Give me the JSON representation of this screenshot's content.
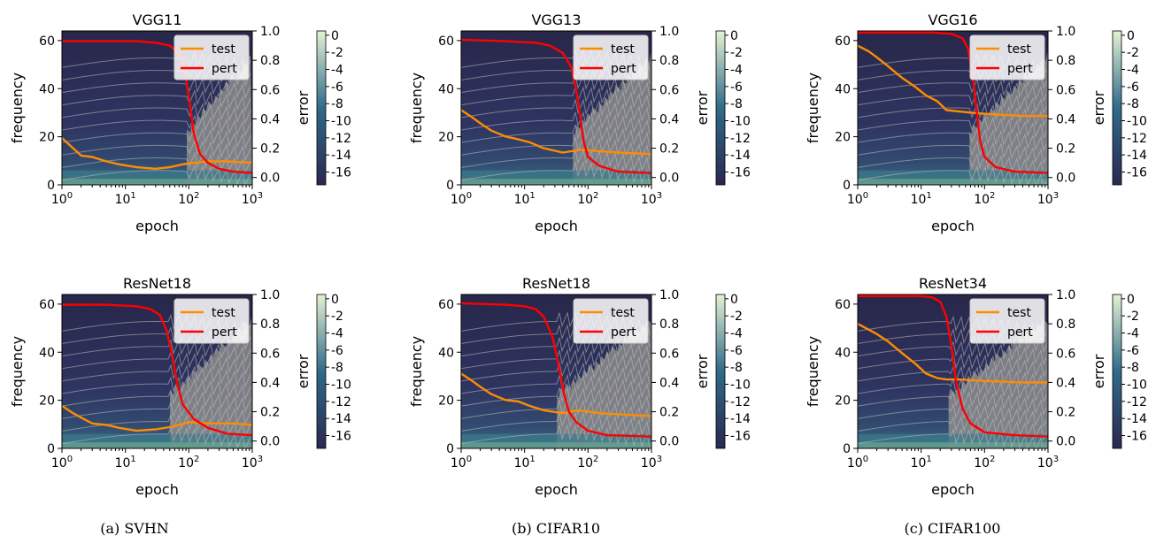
{
  "captions": [
    "(a) SVHN",
    "(b) CIFAR10",
    "(c) CIFAR100"
  ],
  "colorbar": {
    "label": "error",
    "ticks": [
      "0",
      "-2",
      "-4",
      "-6",
      "-8",
      "-10",
      "-12",
      "-14",
      "-16"
    ],
    "values": [
      0,
      -2,
      -4,
      -6,
      -8,
      -10,
      -12,
      -14,
      -16
    ],
    "range": [
      -17.5,
      0.5
    ]
  },
  "colors": {
    "test": "#ff8c00",
    "pert": "#ff0000",
    "contour_line": "#bfbfbf",
    "grey_fill": "#8c8c8c",
    "cmap_dark": "#2a2750",
    "cmap_mid": "#2f6b8a",
    "cmap_light": "#e5f2d2"
  },
  "chart_data": [
    {
      "type": "line",
      "title": "VGG11",
      "xlabel": "epoch",
      "ylabel": "frequency",
      "y2label": "error",
      "xscale": "log",
      "xlim": [
        1,
        1000
      ],
      "xticks": [
        "10^0",
        "10^1",
        "10^2",
        "10^3"
      ],
      "ylim": [
        0,
        64
      ],
      "yticks": [
        0,
        20,
        40,
        60
      ],
      "y2lim": [
        -0.05,
        1.0
      ],
      "y2ticks": [
        "0.0",
        "0.2",
        "0.4",
        "0.6",
        "0.8",
        "1.0"
      ],
      "legend": "top-right",
      "series": [
        {
          "name": "test",
          "x": [
            1,
            1.5,
            2,
            3,
            5,
            8,
            15,
            30,
            50,
            80,
            120,
            200,
            400,
            1000
          ],
          "y": [
            0.27,
            0.2,
            0.15,
            0.14,
            0.11,
            0.09,
            0.07,
            0.06,
            0.07,
            0.09,
            0.1,
            0.11,
            0.11,
            0.1
          ]
        },
        {
          "name": "pert",
          "x": [
            1,
            5,
            15,
            30,
            50,
            70,
            85,
            100,
            120,
            150,
            200,
            300,
            500,
            1000
          ],
          "y": [
            0.93,
            0.93,
            0.93,
            0.92,
            0.9,
            0.85,
            0.75,
            0.55,
            0.3,
            0.16,
            0.1,
            0.06,
            0.04,
            0.03
          ]
        }
      ]
    },
    {
      "type": "line",
      "title": "VGG13",
      "xlabel": "epoch",
      "ylabel": "frequency",
      "y2label": "error",
      "xscale": "log",
      "xlim": [
        1,
        1000
      ],
      "xticks": [
        "10^0",
        "10^1",
        "10^2",
        "10^3"
      ],
      "ylim": [
        0,
        64
      ],
      "yticks": [
        0,
        20,
        40,
        60
      ],
      "y2lim": [
        -0.05,
        1.0
      ],
      "y2ticks": [
        "0.0",
        "0.2",
        "0.4",
        "0.6",
        "0.8",
        "1.0"
      ],
      "legend": "top-right",
      "series": [
        {
          "name": "test",
          "x": [
            1,
            1.5,
            2,
            3,
            5,
            8,
            12,
            20,
            40,
            80,
            150,
            300,
            1000
          ],
          "y": [
            0.46,
            0.41,
            0.37,
            0.32,
            0.28,
            0.26,
            0.24,
            0.2,
            0.17,
            0.19,
            0.18,
            0.17,
            0.16
          ]
        },
        {
          "name": "pert",
          "x": [
            1,
            5,
            15,
            25,
            40,
            55,
            65,
            75,
            85,
            100,
            150,
            300,
            1000
          ],
          "y": [
            0.94,
            0.93,
            0.92,
            0.9,
            0.85,
            0.75,
            0.6,
            0.42,
            0.25,
            0.14,
            0.08,
            0.04,
            0.03
          ]
        }
      ]
    },
    {
      "type": "line",
      "title": "VGG16",
      "xlabel": "epoch",
      "ylabel": "frequency",
      "y2label": "error",
      "xscale": "log",
      "xlim": [
        1,
        1000
      ],
      "xticks": [
        "10^0",
        "10^1",
        "10^2",
        "10^3"
      ],
      "ylim": [
        0,
        64
      ],
      "yticks": [
        0,
        20,
        40,
        60
      ],
      "y2lim": [
        -0.05,
        1.0
      ],
      "y2ticks": [
        "0.0",
        "0.2",
        "0.4",
        "0.6",
        "0.8",
        "1.0"
      ],
      "legend": "top-right",
      "series": [
        {
          "name": "test",
          "x": [
            1,
            1.5,
            2,
            3,
            5,
            8,
            12,
            18,
            25,
            40,
            70,
            150,
            400,
            1000
          ],
          "y": [
            0.9,
            0.86,
            0.82,
            0.76,
            0.68,
            0.62,
            0.56,
            0.52,
            0.46,
            0.45,
            0.44,
            0.43,
            0.42,
            0.42
          ]
        },
        {
          "name": "pert",
          "x": [
            1,
            5,
            15,
            30,
            45,
            55,
            65,
            75,
            85,
            100,
            150,
            300,
            1000
          ],
          "y": [
            0.99,
            0.99,
            0.99,
            0.98,
            0.95,
            0.88,
            0.7,
            0.45,
            0.25,
            0.14,
            0.07,
            0.04,
            0.03
          ]
        }
      ]
    },
    {
      "type": "line",
      "title": "ResNet18",
      "xlabel": "epoch",
      "ylabel": "frequency",
      "y2label": "error",
      "xscale": "log",
      "xlim": [
        1,
        1000
      ],
      "xticks": [
        "10^0",
        "10^1",
        "10^2",
        "10^3"
      ],
      "ylim": [
        0,
        64
      ],
      "yticks": [
        0,
        20,
        40,
        60
      ],
      "y2lim": [
        -0.05,
        1.0
      ],
      "y2ticks": [
        "0.0",
        "0.2",
        "0.4",
        "0.6",
        "0.8",
        "1.0"
      ],
      "legend": "top-right",
      "series": [
        {
          "name": "test",
          "x": [
            1,
            1.5,
            2,
            3,
            5,
            8,
            15,
            30,
            60,
            100,
            200,
            500,
            1000
          ],
          "y": [
            0.24,
            0.19,
            0.16,
            0.12,
            0.11,
            0.09,
            0.07,
            0.08,
            0.1,
            0.13,
            0.12,
            0.12,
            0.11
          ]
        },
        {
          "name": "pert",
          "x": [
            1,
            5,
            15,
            25,
            35,
            45,
            55,
            65,
            80,
            120,
            200,
            400,
            1000
          ],
          "y": [
            0.93,
            0.93,
            0.92,
            0.9,
            0.86,
            0.75,
            0.58,
            0.4,
            0.25,
            0.15,
            0.09,
            0.05,
            0.04
          ]
        }
      ]
    },
    {
      "type": "line",
      "title": "ResNet18",
      "xlabel": "epoch",
      "ylabel": "frequency",
      "y2label": "error",
      "xscale": "log",
      "xlim": [
        1,
        1000
      ],
      "xticks": [
        "10^0",
        "10^1",
        "10^2",
        "10^3"
      ],
      "ylim": [
        0,
        64
      ],
      "yticks": [
        0,
        20,
        40,
        60
      ],
      "y2lim": [
        -0.05,
        1.0
      ],
      "y2ticks": [
        "0.0",
        "0.2",
        "0.4",
        "0.6",
        "0.8",
        "1.0"
      ],
      "legend": "top-right",
      "series": [
        {
          "name": "test",
          "x": [
            1,
            1.5,
            2,
            3,
            5,
            8,
            12,
            20,
            40,
            70,
            150,
            400,
            1000
          ],
          "y": [
            0.46,
            0.41,
            0.37,
            0.32,
            0.28,
            0.27,
            0.24,
            0.21,
            0.19,
            0.21,
            0.19,
            0.18,
            0.17
          ]
        },
        {
          "name": "pert",
          "x": [
            1,
            5,
            10,
            15,
            20,
            28,
            35,
            42,
            50,
            65,
            100,
            200,
            1000
          ],
          "y": [
            0.94,
            0.93,
            0.92,
            0.9,
            0.85,
            0.7,
            0.5,
            0.32,
            0.2,
            0.13,
            0.07,
            0.04,
            0.03
          ]
        }
      ]
    },
    {
      "type": "line",
      "title": "ResNet34",
      "xlabel": "epoch",
      "ylabel": "frequency",
      "y2label": "error",
      "xscale": "log",
      "xlim": [
        1,
        1000
      ],
      "xticks": [
        "10^0",
        "10^1",
        "10^2",
        "10^3"
      ],
      "ylim": [
        0,
        64
      ],
      "yticks": [
        0,
        20,
        40,
        60
      ],
      "y2lim": [
        -0.05,
        1.0
      ],
      "y2ticks": [
        "0.0",
        "0.2",
        "0.4",
        "0.6",
        "0.8",
        "1.0"
      ],
      "legend": "top-right",
      "series": [
        {
          "name": "test",
          "x": [
            1,
            1.5,
            2,
            3,
            5,
            8,
            12,
            18,
            25,
            40,
            100,
            400,
            1000
          ],
          "y": [
            0.8,
            0.76,
            0.73,
            0.68,
            0.6,
            0.53,
            0.46,
            0.43,
            0.42,
            0.42,
            0.41,
            0.4,
            0.4
          ]
        },
        {
          "name": "pert",
          "x": [
            1,
            5,
            10,
            15,
            20,
            25,
            30,
            35,
            45,
            60,
            100,
            300,
            1000
          ],
          "y": [
            0.99,
            0.99,
            0.99,
            0.98,
            0.95,
            0.85,
            0.65,
            0.42,
            0.22,
            0.12,
            0.06,
            0.04,
            0.03
          ]
        }
      ]
    }
  ]
}
